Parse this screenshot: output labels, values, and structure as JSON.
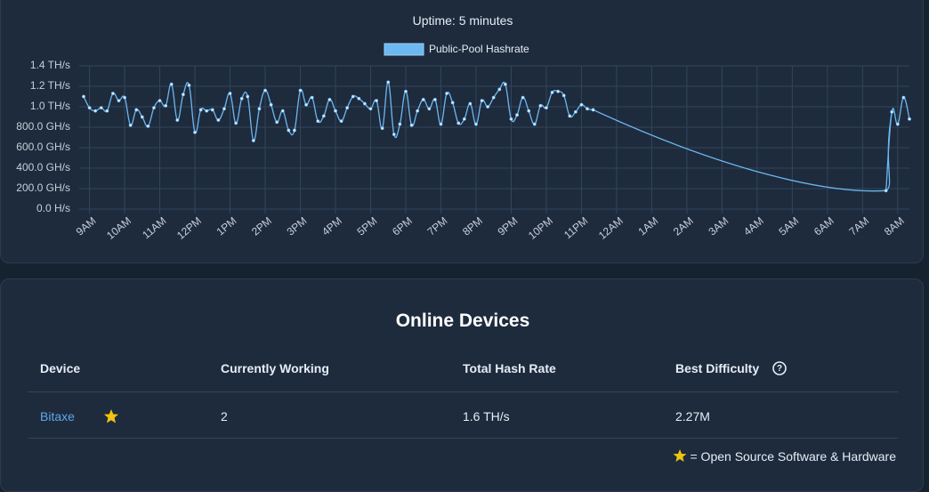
{
  "uptime": "Uptime: 5 minutes",
  "chart_data": {
    "type": "line",
    "categories": [
      null,
      "9AM",
      null,
      null,
      null,
      null,
      null,
      "10AM",
      null,
      null,
      null,
      null,
      null,
      "11AM",
      null,
      null,
      null,
      null,
      null,
      "12PM",
      null,
      null,
      null,
      null,
      null,
      "1PM",
      null,
      null,
      null,
      null,
      null,
      "2PM",
      null,
      null,
      null,
      null,
      null,
      "3PM",
      null,
      null,
      null,
      null,
      null,
      "4PM",
      null,
      null,
      null,
      null,
      null,
      "5PM",
      null,
      null,
      null,
      null,
      null,
      "6PM",
      null,
      null,
      null,
      null,
      null,
      "7PM",
      null,
      null,
      null,
      null,
      null,
      "8PM",
      null,
      null,
      null,
      null,
      null,
      "9PM",
      null,
      null,
      null,
      null,
      null,
      "10PM",
      null,
      null,
      null,
      null,
      null,
      "11PM",
      null,
      null,
      null,
      null,
      null,
      "12AM",
      null,
      null,
      null,
      null,
      null,
      "1AM",
      null,
      null,
      null,
      null,
      null,
      "2AM",
      null,
      null,
      null,
      null,
      null,
      "3AM",
      null,
      null,
      null,
      null,
      null,
      "4AM",
      null,
      null,
      null,
      null,
      null,
      "5AM",
      null,
      null,
      null,
      null,
      null,
      "6AM",
      null,
      null,
      null,
      null,
      null,
      "7AM",
      null,
      null,
      null,
      null,
      null,
      "8AM",
      null,
      null
    ],
    "series": [
      {
        "name": "Public-Pool Hashrate",
        "color": "#6cb8f0",
        "values": [
          1100,
          990,
          960,
          990,
          960,
          1130,
          1060,
          1090,
          820,
          970,
          900,
          810,
          990,
          1060,
          1010,
          1220,
          870,
          1120,
          1210,
          750,
          970,
          960,
          970,
          870,
          980,
          1130,
          840,
          1080,
          1100,
          670,
          980,
          1160,
          1020,
          850,
          960,
          770,
          770,
          1160,
          1020,
          1090,
          860,
          910,
          1070,
          960,
          860,
          990,
          1100,
          1080,
          1030,
          980,
          1060,
          790,
          1240,
          730,
          830,
          1150,
          820,
          960,
          1070,
          980,
          1070,
          830,
          1130,
          1040,
          840,
          880,
          1030,
          830,
          1060,
          1000,
          1090,
          1170,
          1220,
          880,
          920,
          1090,
          960,
          830,
          1010,
          990,
          1140,
          1150,
          1110,
          910,
          950,
          1020,
          980,
          970,
          null,
          null,
          null,
          null,
          null,
          null,
          null,
          null,
          null,
          null,
          null,
          null,
          null,
          null,
          null,
          null,
          null,
          null,
          null,
          null,
          null,
          null,
          null,
          null,
          null,
          null,
          null,
          null,
          null,
          null,
          null,
          null,
          null,
          null,
          null,
          null,
          null,
          null,
          null,
          null,
          null,
          null,
          null,
          null,
          null,
          null,
          null,
          null,
          null,
          180,
          950,
          830,
          1090,
          880
        ]
      }
    ],
    "ylim": [
      0,
      1400
    ],
    "yticks": [
      {
        "value": 0,
        "label": "0.0 H/s"
      },
      {
        "value": 200,
        "label": "200.0 GH/s"
      },
      {
        "value": 400,
        "label": "400.0 GH/s"
      },
      {
        "value": 600,
        "label": "600.0 GH/s"
      },
      {
        "value": 800,
        "label": "800.0 GH/s"
      },
      {
        "value": 1000,
        "label": "1.0 TH/s"
      },
      {
        "value": 1200,
        "label": "1.2 TH/s"
      },
      {
        "value": 1400,
        "label": "1.4 TH/s"
      }
    ],
    "grid": true,
    "smooth": true,
    "span_gaps": true,
    "legend": "top"
  },
  "devices": {
    "title": "Online Devices",
    "columns": [
      "Device",
      "Currently Working",
      "Total Hash Rate",
      "Best Difficulty"
    ],
    "rows": [
      [
        "Bitaxe",
        "2",
        "1.6 TH/s",
        "2.27M"
      ]
    ],
    "footnote": "= Open Source Software & Hardware"
  }
}
